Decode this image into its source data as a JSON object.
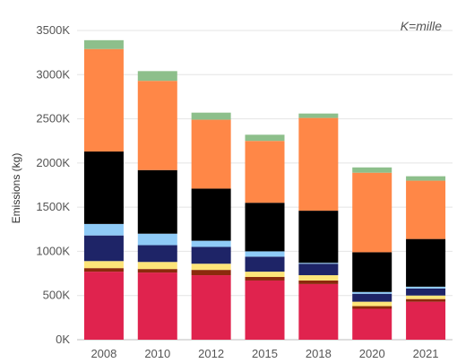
{
  "note": "K=mille",
  "chart_data": {
    "type": "bar",
    "stacked": true,
    "ylabel": "Emissions (kg)",
    "categories": [
      "2008",
      "2010",
      "2012",
      "2015",
      "2018",
      "2020",
      "2021"
    ],
    "yticks": [
      "0K",
      "500K",
      "1000K",
      "1500K",
      "2000K",
      "2500K",
      "3000K",
      "3500K"
    ],
    "ylim": [
      0,
      3500000
    ],
    "grid": true,
    "series": [
      {
        "color": "#e0234e",
        "values": [
          770000,
          760000,
          730000,
          670000,
          630000,
          350000,
          430000
        ]
      },
      {
        "color": "#8b2a0c",
        "values": [
          40000,
          40000,
          60000,
          40000,
          40000,
          30000,
          30000
        ]
      },
      {
        "color": "#fde579",
        "values": [
          80000,
          80000,
          70000,
          60000,
          60000,
          50000,
          40000
        ]
      },
      {
        "color": "#1e2467",
        "values": [
          290000,
          190000,
          190000,
          170000,
          130000,
          90000,
          80000
        ]
      },
      {
        "color": "#8fcbf7",
        "values": [
          130000,
          130000,
          70000,
          60000,
          10000,
          20000,
          20000
        ]
      },
      {
        "color": "#000000",
        "values": [
          820000,
          720000,
          590000,
          550000,
          590000,
          450000,
          540000
        ]
      },
      {
        "color": "#ff8747",
        "values": [
          1160000,
          1010000,
          780000,
          700000,
          1050000,
          900000,
          660000
        ]
      },
      {
        "color": "#8dbf8b",
        "values": [
          100000,
          110000,
          80000,
          70000,
          50000,
          60000,
          50000
        ]
      }
    ]
  }
}
